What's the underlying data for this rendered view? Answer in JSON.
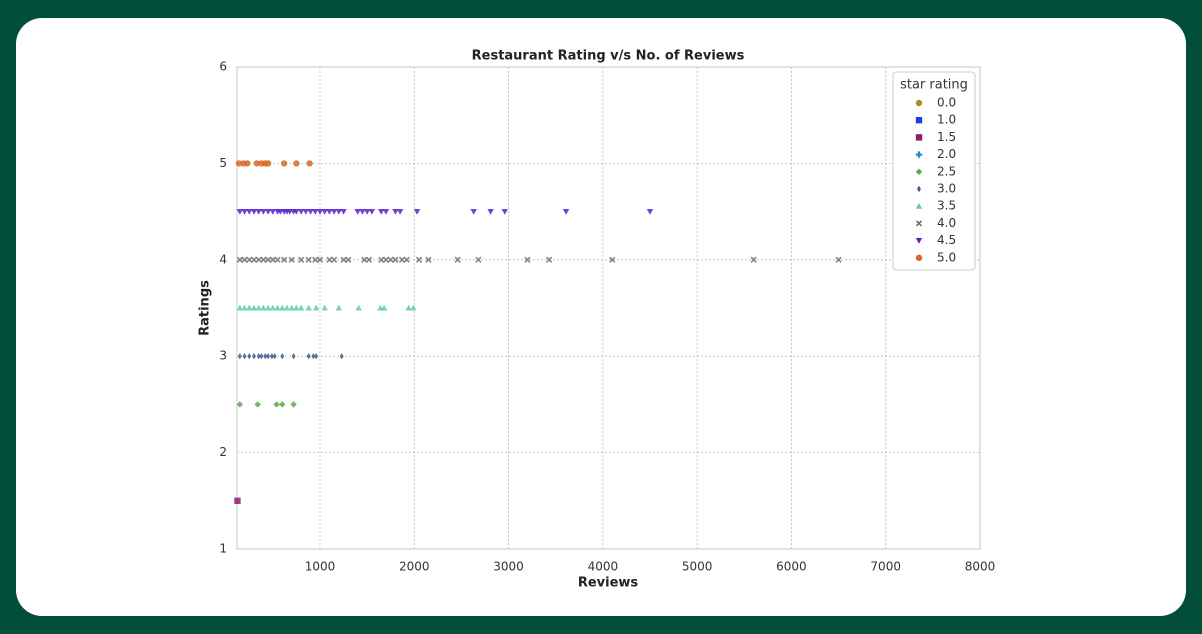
{
  "chart_data": {
    "type": "scatter",
    "title": "Restaurant Rating v/s No. of Reviews",
    "x_label": "Reviews",
    "y_label": "Ratings",
    "xlim": [
      120,
      8000
    ],
    "ylim": [
      1,
      6
    ],
    "xticks": [
      1000,
      2000,
      3000,
      4000,
      5000,
      6000,
      7000,
      8000
    ],
    "yticks": [
      1,
      2,
      3,
      4,
      5,
      6
    ],
    "grid": true,
    "legend_title": "star rating",
    "legend": "upper right",
    "series": [
      {
        "name": "0.0",
        "color": "#b5862a",
        "marker": "circle",
        "x": [],
        "values": []
      },
      {
        "name": "1.0",
        "color": "#1f3fe0",
        "marker": "square",
        "x": [],
        "values": []
      },
      {
        "name": "1.5",
        "color": "#8e1c6e",
        "marker": "square",
        "x": [
          125
        ],
        "values": [
          1.5
        ]
      },
      {
        "name": "2.0",
        "color": "#1a8fc9",
        "marker": "plus",
        "x": [],
        "values": []
      },
      {
        "name": "2.5",
        "color": "#5aa84a",
        "marker": "diamond",
        "x": [
          150,
          340,
          540,
          600,
          720
        ],
        "values": [
          2.5,
          2.5,
          2.5,
          2.5,
          2.5
        ]
      },
      {
        "name": "3.0",
        "color": "#3a5a8a",
        "marker": "thin-diamond",
        "x": [
          150,
          200,
          250,
          300,
          350,
          380,
          420,
          450,
          490,
          520,
          600,
          720,
          880,
          930,
          960,
          1230
        ],
        "values": [
          3,
          3,
          3,
          3,
          3,
          3,
          3,
          3,
          3,
          3,
          3,
          3,
          3,
          3,
          3,
          3
        ]
      },
      {
        "name": "3.5",
        "color": "#5ccfa0",
        "marker": "triangle-up",
        "x": [
          150,
          200,
          250,
          300,
          350,
          400,
          450,
          500,
          550,
          600,
          650,
          700,
          750,
          800,
          880,
          960,
          1050,
          1200,
          1410,
          1640,
          1680,
          1940,
          1990
        ],
        "values": [
          3.5,
          3.5,
          3.5,
          3.5,
          3.5,
          3.5,
          3.5,
          3.5,
          3.5,
          3.5,
          3.5,
          3.5,
          3.5,
          3.5,
          3.5,
          3.5,
          3.5,
          3.5,
          3.5,
          3.5,
          3.5,
          3.5,
          3.5
        ]
      },
      {
        "name": "4.0",
        "color": "#707070",
        "marker": "x",
        "x": [
          150,
          200,
          250,
          300,
          350,
          400,
          450,
          500,
          550,
          620,
          700,
          800,
          880,
          950,
          1000,
          1100,
          1150,
          1250,
          1300,
          1470,
          1520,
          1650,
          1700,
          1750,
          1800,
          1870,
          1920,
          2050,
          2150,
          2460,
          2680,
          3200,
          3430,
          4100,
          5600,
          6500
        ],
        "values": [
          4,
          4,
          4,
          4,
          4,
          4,
          4,
          4,
          4,
          4,
          4,
          4,
          4,
          4,
          4,
          4,
          4,
          4,
          4,
          4,
          4,
          4,
          4,
          4,
          4,
          4,
          4,
          4,
          4,
          4,
          4,
          4,
          4,
          4,
          4,
          4
        ]
      },
      {
        "name": "4.5",
        "color": "#5a1fc8",
        "marker": "triangle-down",
        "x": [
          150,
          200,
          250,
          300,
          350,
          400,
          450,
          500,
          550,
          580,
          620,
          650,
          680,
          720,
          750,
          800,
          850,
          900,
          950,
          1000,
          1050,
          1100,
          1150,
          1200,
          1250,
          1400,
          1450,
          1500,
          1550,
          1650,
          1700,
          1800,
          1850,
          2030,
          2630,
          2810,
          2960,
          3610,
          4500
        ],
        "values": [
          4.5,
          4.5,
          4.5,
          4.5,
          4.5,
          4.5,
          4.5,
          4.5,
          4.5,
          4.5,
          4.5,
          4.5,
          4.5,
          4.5,
          4.5,
          4.5,
          4.5,
          4.5,
          4.5,
          4.5,
          4.5,
          4.5,
          4.5,
          4.5,
          4.5,
          4.5,
          4.5,
          4.5,
          4.5,
          4.5,
          4.5,
          4.5,
          4.5,
          4.5,
          4.5,
          4.5,
          4.5,
          4.5,
          4.5
        ]
      },
      {
        "name": "5.0",
        "color": "#d9692a",
        "marker": "circle",
        "x": [
          140,
          190,
          230,
          330,
          380,
          420,
          450,
          620,
          750,
          890
        ],
        "values": [
          5,
          5,
          5,
          5,
          5,
          5,
          5,
          5,
          5,
          5
        ]
      }
    ]
  }
}
